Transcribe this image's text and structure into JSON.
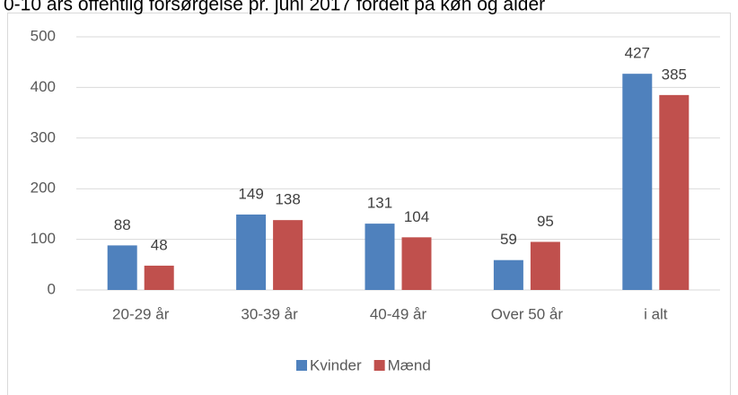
{
  "chart_data": {
    "type": "bar",
    "title": "0-10 års offentlig forsørgelse pr. juni 2017 fordelt på køn og alder",
    "categories": [
      "20-29 år",
      "30-39 år",
      "40-49 år",
      "Over 50 år",
      "i alt"
    ],
    "series": [
      {
        "name": "Kvinder",
        "color": "#4f81bd",
        "values": [
          88,
          149,
          131,
          59,
          427
        ]
      },
      {
        "name": "Mænd",
        "color": "#c0504d",
        "values": [
          48,
          138,
          104,
          95,
          385
        ]
      }
    ],
    "ylim": [
      0,
      500
    ],
    "yticks": [
      0,
      100,
      200,
      300,
      400,
      500
    ],
    "grid": true,
    "legend": "bottom"
  }
}
